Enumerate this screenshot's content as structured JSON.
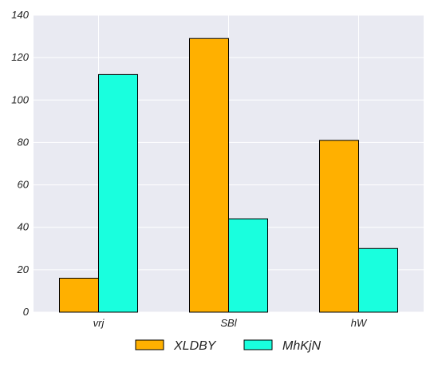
{
  "chart_data": {
    "type": "bar",
    "title": "",
    "xlabel": "",
    "ylabel": "",
    "categories": [
      "vrj",
      "SBl",
      "hW"
    ],
    "series": [
      {
        "name": "XLDBY",
        "values": [
          16,
          129,
          81
        ],
        "color": "#ffb000"
      },
      {
        "name": "MhKjN",
        "values": [
          112,
          44,
          30
        ],
        "color": "#19ffde"
      }
    ],
    "ylim": [
      0,
      140
    ],
    "yticks": [
      0,
      20,
      40,
      60,
      80,
      100,
      120,
      140
    ],
    "grid": true,
    "background": "#e9eaf2",
    "legend_position": "bottom-center"
  }
}
